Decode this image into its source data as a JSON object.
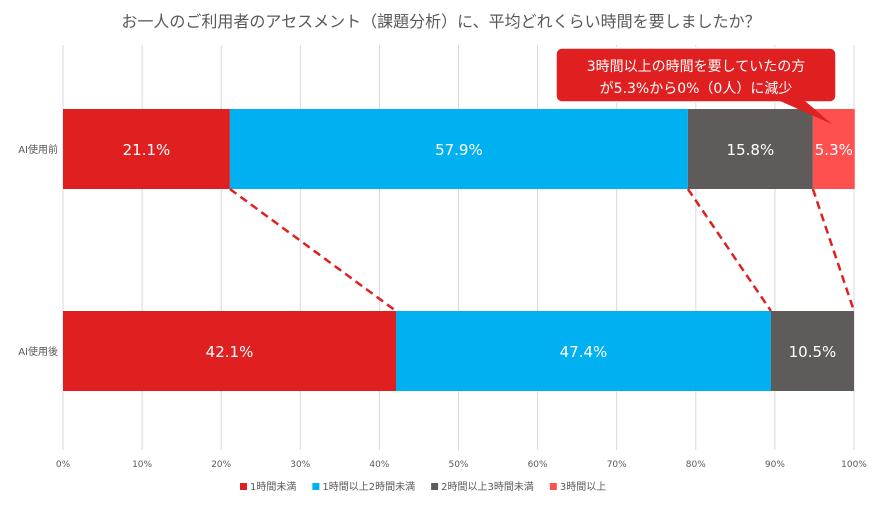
{
  "chart_data": {
    "type": "bar",
    "orientation": "horizontal",
    "stacked": "percent",
    "title": "お一人のご利用者のアセスメント（課題分析）に、平均どれくらい時間を要しましたか？",
    "categories": [
      "AI使用前",
      "AI使用後"
    ],
    "series": [
      {
        "name": "1時間未満",
        "color": "#E02020",
        "values": [
          21.1,
          42.1
        ],
        "labels": [
          "21.1%",
          "42.1%"
        ]
      },
      {
        "name": "1時間以上2時間未満",
        "color": "#00B0F0",
        "values": [
          57.9,
          47.4
        ],
        "labels": [
          "57.9%",
          "47.4%"
        ]
      },
      {
        "name": "2時間以上3時間未満",
        "color": "#5F5B5B",
        "values": [
          15.8,
          10.5
        ],
        "labels": [
          "15.8%",
          "10.5%"
        ]
      },
      {
        "name": "3時間以上",
        "color": "#FF5050",
        "values": [
          5.3,
          0
        ],
        "labels": [
          "5.3%",
          ""
        ]
      }
    ],
    "xlim": [
      0,
      100
    ],
    "xticks": [
      "0%",
      "10%",
      "20%",
      "30%",
      "40%",
      "50%",
      "60%",
      "70%",
      "80%",
      "90%",
      "100%"
    ],
    "grid": true,
    "legend": "bottom",
    "annotation": [
      "3時間以上の時間を要していたの方",
      "が5.3%から0%（0人）に減少"
    ]
  }
}
